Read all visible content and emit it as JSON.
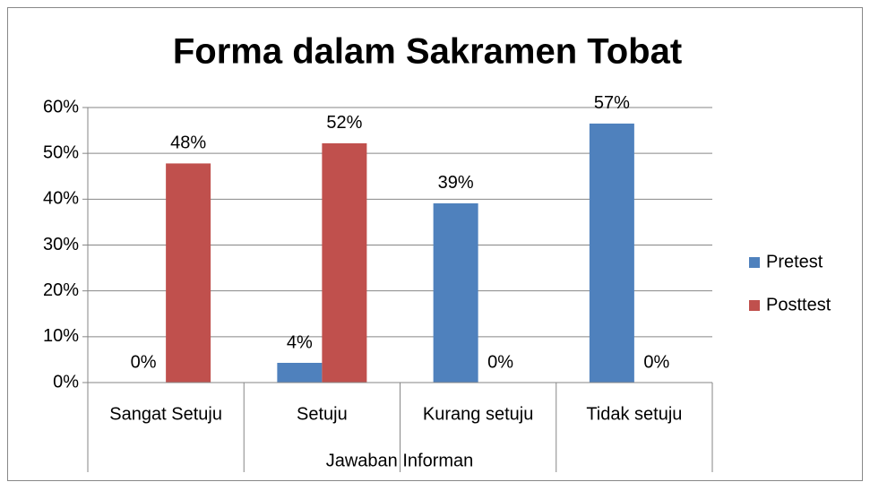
{
  "chart_data": {
    "type": "bar",
    "title": "Forma dalam Sakramen Tobat",
    "x_label": "Jawaban Informan",
    "categories": [
      "Sangat Setuju",
      "Setuju",
      "Kurang setuju",
      "Tidak setuju"
    ],
    "series": [
      {
        "name": "Pretest",
        "color": "#4f81bd",
        "values": [
          0,
          4.3,
          39.1,
          56.5
        ],
        "value_labels": [
          "0%",
          "4%",
          "39%",
          "57%"
        ]
      },
      {
        "name": "Posttest",
        "color": "#c0504d",
        "values": [
          47.8,
          52.2,
          0,
          0
        ],
        "value_labels": [
          "48%",
          "52%",
          "0%",
          "0%"
        ]
      }
    ],
    "ylim": [
      0,
      60
    ],
    "yticks": [
      {
        "value": 0,
        "label": "0%"
      },
      {
        "value": 10,
        "label": "10%"
      },
      {
        "value": 20,
        "label": "20%"
      },
      {
        "value": 30,
        "label": "30%"
      },
      {
        "value": 40,
        "label": "40%"
      },
      {
        "value": 50,
        "label": "50%"
      },
      {
        "value": 60,
        "label": "60%"
      }
    ],
    "grid": true,
    "legend": "right"
  }
}
